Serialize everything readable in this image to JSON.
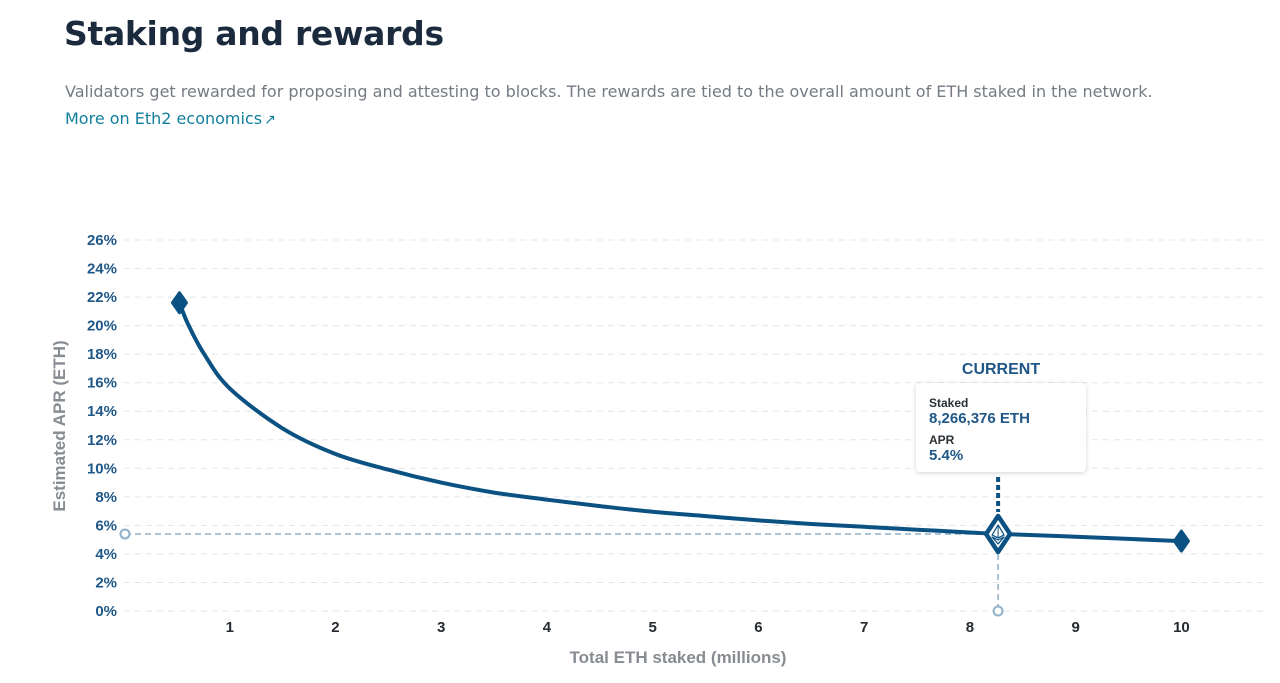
{
  "page": {
    "title": "Staking and rewards",
    "description": "Validators get rewarded for proposing and attesting to blocks. The rewards are tied to the overall amount of ETH staked in the network.",
    "link_label": "More on Eth2 economics",
    "link_icon": "external-link-arrow-icon"
  },
  "chart_data": {
    "type": "line",
    "xlabel": "Total ETH staked (millions)",
    "ylabel": "Estimated APR (ETH)",
    "xlim": [
      0,
      10.8
    ],
    "ylim": [
      0,
      26
    ],
    "x_ticks": [
      1,
      2,
      3,
      4,
      5,
      6,
      7,
      8,
      9,
      10
    ],
    "y_ticks": [
      0,
      2,
      4,
      6,
      8,
      10,
      12,
      14,
      16,
      18,
      20,
      22,
      24,
      26
    ],
    "y_tick_suffix": "%",
    "grid": "horizontal dashed",
    "series": [
      {
        "x": [
          0.524288,
          0.6,
          0.75,
          1,
          1.5,
          2,
          2.5,
          3,
          3.5,
          4,
          4.5,
          5,
          5.5,
          6,
          6.5,
          7,
          7.5,
          8,
          8.266376,
          8.5,
          9,
          9.5,
          10
        ],
        "y": [
          21.6,
          20.2,
          18.1,
          15.6,
          12.8,
          11.0,
          9.9,
          9.0,
          8.3,
          7.8,
          7.35,
          6.95,
          6.65,
          6.35,
          6.1,
          5.9,
          5.7,
          5.5,
          5.4,
          5.35,
          5.2,
          5.05,
          4.9
        ]
      }
    ],
    "endpoint_markers": [
      {
        "x": 0.524288,
        "y": 21.6
      },
      {
        "x": 10,
        "y": 4.9
      }
    ],
    "current": {
      "title": "CURRENT",
      "staked_label": "Staked",
      "staked_value": "8,266,376 ETH",
      "apr_label": "APR",
      "apr_value": "5.4%",
      "x": 8.266376,
      "y": 5.4,
      "icon": "eth-diamond-icon"
    },
    "colors": {
      "line": "#0b5283",
      "tick_y": "#1f5788",
      "tick_x": "#252b31",
      "grid": "#e1e5ea",
      "guide": "#8fb0c8",
      "link": "#117f9c"
    }
  }
}
